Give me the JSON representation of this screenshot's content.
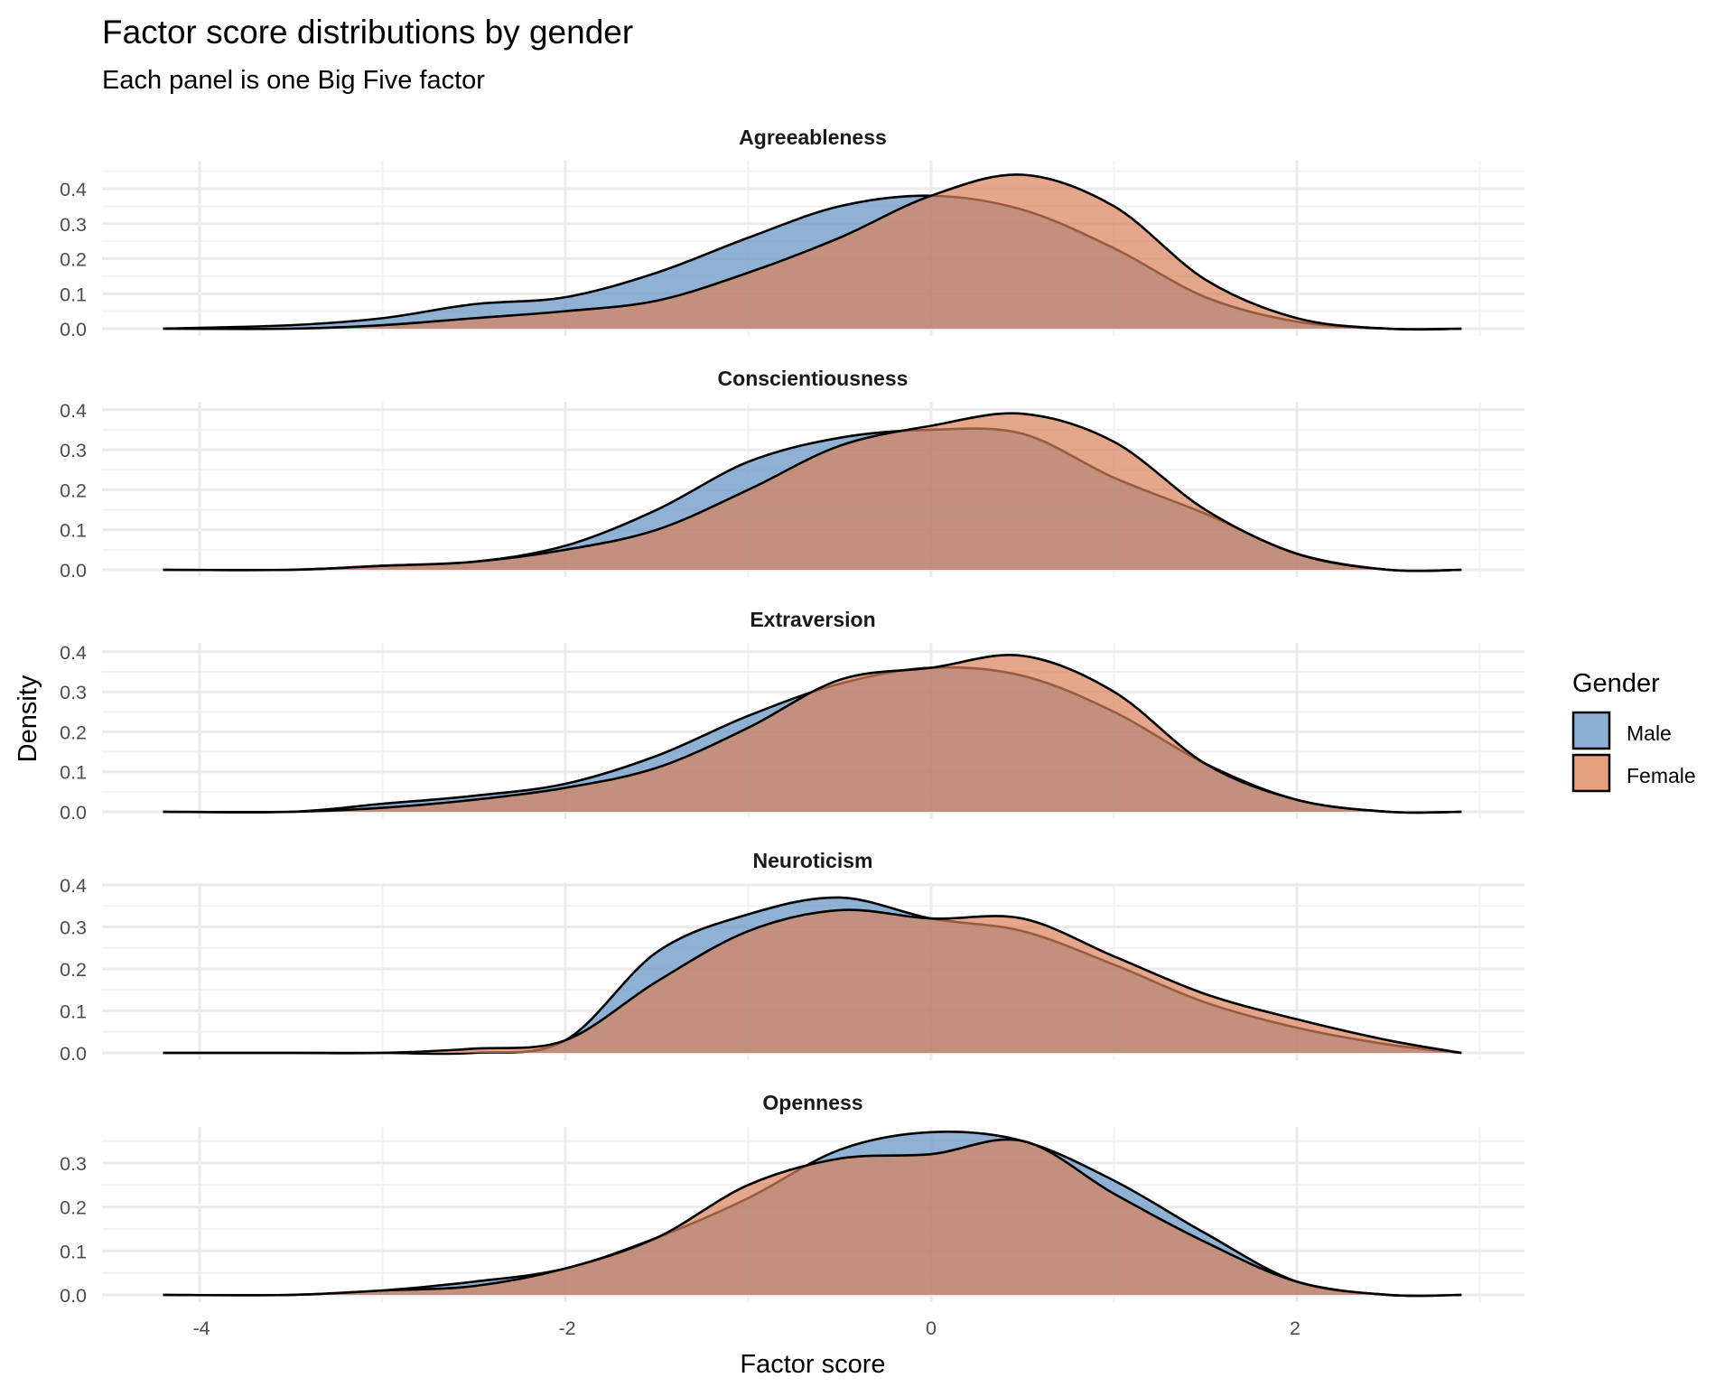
{
  "header": {
    "title": "Factor score distributions by gender",
    "subtitle": "Each panel is one Big Five factor"
  },
  "axes": {
    "xlabel": "Factor score",
    "ylabel": "Density",
    "x_ticks": [
      "-4",
      "-2",
      "0",
      "2"
    ]
  },
  "legend": {
    "title": "Gender",
    "items": [
      {
        "label": "Male",
        "color": "#8cb0d4"
      },
      {
        "label": "Female",
        "color": "#e5a07c"
      }
    ]
  },
  "colors": {
    "male_fill": "#6a97c6",
    "female_fill": "#d9825a",
    "overlap_fill": "#ad7d6b",
    "grid_major": "#ebebeb",
    "grid_minor": "#f2f2f2",
    "outline": "#000000"
  },
  "chart_data": {
    "type": "area",
    "subtype": "faceted overlapping density",
    "title": "Factor score distributions by gender",
    "subtitle": "Each panel is one Big Five factor",
    "xlabel": "Factor score",
    "ylabel": "Density",
    "xlim": [
      -4.4,
      3.2
    ],
    "x_ticks": [
      -4,
      -2,
      0,
      2
    ],
    "grid": true,
    "legend_position": "right",
    "legend_title": "Gender",
    "x": [
      -4.2,
      -3.5,
      -3.0,
      -2.5,
      -2.0,
      -1.5,
      -1.0,
      -0.5,
      0.0,
      0.5,
      1.0,
      1.5,
      2.0,
      2.5,
      2.9
    ],
    "panels": [
      {
        "name": "Agreeableness",
        "y_ticks": [
          0.0,
          0.1,
          0.2,
          0.3,
          0.4
        ],
        "series": [
          {
            "name": "Male",
            "values": [
              0.0,
              0.01,
              0.03,
              0.07,
              0.09,
              0.16,
              0.26,
              0.35,
              0.38,
              0.34,
              0.23,
              0.09,
              0.02,
              0.0,
              0.0
            ]
          },
          {
            "name": "Female",
            "values": [
              0.0,
              0.0,
              0.01,
              0.03,
              0.05,
              0.08,
              0.16,
              0.26,
              0.38,
              0.44,
              0.35,
              0.14,
              0.03,
              0.0,
              0.0
            ]
          }
        ]
      },
      {
        "name": "Conscientiousness",
        "y_ticks": [
          0.0,
          0.1,
          0.2,
          0.3,
          0.4
        ],
        "series": [
          {
            "name": "Male",
            "values": [
              0.0,
              0.0,
              0.01,
              0.02,
              0.06,
              0.15,
              0.27,
              0.33,
              0.35,
              0.34,
              0.23,
              0.14,
              0.04,
              0.0,
              0.0
            ]
          },
          {
            "name": "Female",
            "values": [
              0.0,
              0.0,
              0.01,
              0.02,
              0.05,
              0.1,
              0.2,
              0.31,
              0.36,
              0.39,
              0.32,
              0.15,
              0.04,
              0.0,
              0.0
            ]
          }
        ]
      },
      {
        "name": "Extraversion",
        "y_ticks": [
          0.0,
          0.1,
          0.2,
          0.3,
          0.4
        ],
        "series": [
          {
            "name": "Male",
            "values": [
              0.0,
              0.0,
              0.02,
              0.04,
              0.07,
              0.14,
              0.24,
              0.32,
              0.36,
              0.34,
              0.25,
              0.12,
              0.03,
              0.0,
              0.0
            ]
          },
          {
            "name": "Female",
            "values": [
              0.0,
              0.0,
              0.01,
              0.03,
              0.06,
              0.11,
              0.21,
              0.33,
              0.36,
              0.39,
              0.3,
              0.12,
              0.03,
              0.0,
              0.0
            ]
          }
        ]
      },
      {
        "name": "Neuroticism",
        "y_ticks": [
          0.0,
          0.1,
          0.2,
          0.3,
          0.4
        ],
        "series": [
          {
            "name": "Male",
            "values": [
              0.0,
              0.0,
              0.0,
              0.0,
              0.03,
              0.24,
              0.33,
              0.37,
              0.32,
              0.29,
              0.21,
              0.12,
              0.06,
              0.02,
              0.0
            ]
          },
          {
            "name": "Female",
            "values": [
              0.0,
              0.0,
              0.0,
              0.01,
              0.03,
              0.17,
              0.29,
              0.34,
              0.32,
              0.32,
              0.23,
              0.14,
              0.08,
              0.03,
              0.0
            ]
          }
        ]
      },
      {
        "name": "Openness",
        "y_ticks": [
          0.0,
          0.1,
          0.2,
          0.3
        ],
        "series": [
          {
            "name": "Male",
            "values": [
              0.0,
              0.0,
              0.01,
              0.03,
              0.06,
              0.13,
              0.22,
              0.33,
              0.37,
              0.35,
              0.26,
              0.14,
              0.03,
              0.0,
              0.0
            ]
          },
          {
            "name": "Female",
            "values": [
              0.0,
              0.0,
              0.01,
              0.02,
              0.06,
              0.13,
              0.25,
              0.31,
              0.32,
              0.35,
              0.23,
              0.12,
              0.03,
              0.0,
              0.0
            ]
          }
        ]
      }
    ]
  }
}
